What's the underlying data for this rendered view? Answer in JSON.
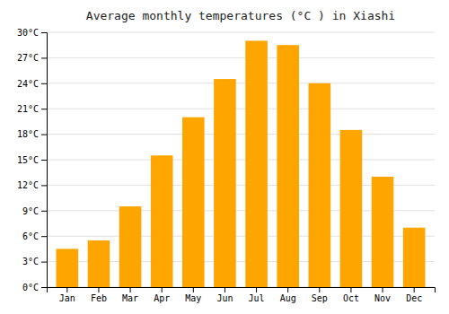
{
  "chart_data": {
    "type": "bar",
    "title": "Average monthly temperatures (°C ) in Xiashi",
    "categories": [
      "Jan",
      "Feb",
      "Mar",
      "Apr",
      "May",
      "Jun",
      "Jul",
      "Aug",
      "Sep",
      "Oct",
      "Nov",
      "Dec"
    ],
    "values": [
      4.5,
      5.5,
      9.5,
      15.5,
      20.0,
      24.5,
      29.0,
      28.5,
      24.0,
      18.5,
      13.0,
      7.0
    ],
    "color": "#FFA500",
    "ylim": [
      0,
      30
    ],
    "yticks": [
      {
        "value": 0,
        "label": "0°C"
      },
      {
        "value": 3,
        "label": "3°C"
      },
      {
        "value": 6,
        "label": "6°C"
      },
      {
        "value": 9,
        "label": "9°C"
      },
      {
        "value": 12,
        "label": "12°C"
      },
      {
        "value": 15,
        "label": "15°C"
      },
      {
        "value": 18,
        "label": "18°C"
      },
      {
        "value": 21,
        "label": "21°C"
      },
      {
        "value": 24,
        "label": "24°C"
      },
      {
        "value": 27,
        "label": "27°C"
      },
      {
        "value": 30,
        "label": "30°C"
      }
    ],
    "grid": true
  }
}
